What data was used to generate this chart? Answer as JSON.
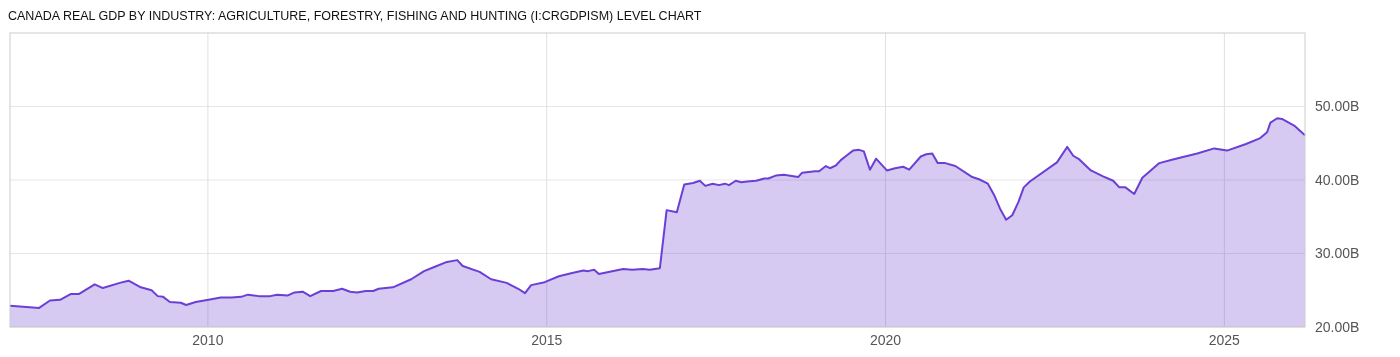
{
  "chart_data": {
    "type": "area",
    "title": "CANADA REAL GDP BY INDUSTRY: AGRICULTURE, FORESTRY, FISHING AND HUNTING (I:CRGDPISM) LEVEL CHART",
    "x": [
      2007.08,
      2007.51,
      2007.67,
      2007.82,
      2007.98,
      2008.1,
      2008.33,
      2008.45,
      2008.7,
      2008.83,
      2009.01,
      2009.17,
      2009.26,
      2009.34,
      2009.44,
      2009.6,
      2009.68,
      2009.82,
      2010.01,
      2010.19,
      2010.35,
      2010.49,
      2010.59,
      2010.75,
      2010.92,
      2011.02,
      2011.18,
      2011.28,
      2011.4,
      2011.51,
      2011.67,
      2011.85,
      2011.98,
      2012.1,
      2012.2,
      2012.33,
      2012.44,
      2012.52,
      2012.73,
      2013.0,
      2013.19,
      2013.35,
      2013.51,
      2013.68,
      2013.76,
      2014.01,
      2014.18,
      2014.41,
      2014.58,
      2014.68,
      2014.77,
      2014.97,
      2015.18,
      2015.36,
      2015.54,
      2015.61,
      2015.7,
      2015.77,
      2016.02,
      2016.13,
      2016.26,
      2016.42,
      2016.52,
      2016.67,
      2016.77,
      2016.92,
      2017.03,
      2017.16,
      2017.26,
      2017.34,
      2017.45,
      2017.54,
      2017.63,
      2017.69,
      2017.79,
      2017.87,
      2017.96,
      2018.09,
      2018.21,
      2018.27,
      2018.38,
      2018.5,
      2018.71,
      2018.77,
      2018.96,
      2019.02,
      2019.12,
      2019.18,
      2019.27,
      2019.34,
      2019.45,
      2019.52,
      2019.61,
      2019.68,
      2019.77,
      2019.86,
      2020.02,
      2020.14,
      2020.26,
      2020.35,
      2020.52,
      2020.6,
      2020.69,
      2020.77,
      2020.88,
      2021.03,
      2021.28,
      2021.38,
      2021.51,
      2021.6,
      2021.69,
      2021.78,
      2021.87,
      2021.96,
      2022.04,
      2022.13,
      2022.53,
      2022.68,
      2022.77,
      2022.86,
      2023.03,
      2023.21,
      2023.36,
      2023.45,
      2023.54,
      2023.67,
      2023.79,
      2024.04,
      2024.24,
      2024.6,
      2024.85,
      2025.04,
      2025.32,
      2025.53,
      2025.63,
      2025.68,
      2025.78,
      2025.85,
      2026.03,
      2026.19
    ],
    "series": [
      {
        "color": "#6b3fd4",
        "values": [
          22.9,
          22.6,
          23.6,
          23.7,
          24.5,
          24.5,
          25.8,
          25.3,
          26.0,
          26.3,
          25.4,
          25.0,
          24.2,
          24.1,
          23.4,
          23.3,
          23.0,
          23.4,
          23.7,
          24.0,
          24.0,
          24.1,
          24.4,
          24.2,
          24.2,
          24.4,
          24.3,
          24.7,
          24.8,
          24.2,
          24.9,
          24.9,
          25.2,
          24.8,
          24.7,
          24.9,
          24.9,
          25.2,
          25.4,
          26.5,
          27.6,
          28.2,
          28.8,
          29.1,
          28.3,
          27.5,
          26.5,
          26.0,
          25.2,
          24.6,
          25.7,
          26.1,
          26.9,
          27.3,
          27.7,
          27.6,
          27.8,
          27.2,
          27.7,
          27.9,
          27.8,
          27.9,
          27.8,
          28.0,
          35.9,
          35.6,
          39.4,
          39.6,
          39.9,
          39.2,
          39.5,
          39.3,
          39.5,
          39.3,
          39.9,
          39.7,
          39.8,
          39.9,
          40.2,
          40.2,
          40.6,
          40.7,
          40.4,
          41.0,
          41.2,
          41.2,
          41.9,
          41.6,
          42.0,
          42.7,
          43.5,
          44.0,
          44.1,
          43.9,
          41.4,
          42.9,
          41.3,
          41.6,
          41.8,
          41.4,
          43.2,
          43.5,
          43.6,
          42.3,
          42.3,
          41.9,
          40.4,
          40.1,
          39.5,
          38.0,
          36.1,
          34.6,
          35.2,
          37.0,
          39.0,
          39.8,
          42.4,
          44.5,
          43.3,
          42.8,
          41.3,
          40.5,
          39.9,
          39.0,
          39.0,
          38.1,
          40.3,
          42.3,
          42.8,
          43.6,
          44.3,
          44.0,
          44.9,
          45.7,
          46.5,
          47.8,
          48.4,
          48.3,
          47.4,
          46.1
        ]
      }
    ],
    "xlim": [
      2007.08,
      2026.19
    ],
    "xticks": [
      2010,
      2015,
      2020,
      2025
    ],
    "ylim": [
      20,
      60
    ],
    "yticks": [
      {
        "value": 20,
        "label": "20.00B"
      },
      {
        "value": 30,
        "label": "30.00B"
      },
      {
        "value": 40,
        "label": "40.00B"
      },
      {
        "value": 50,
        "label": "50.00B"
      }
    ],
    "grid": true
  }
}
